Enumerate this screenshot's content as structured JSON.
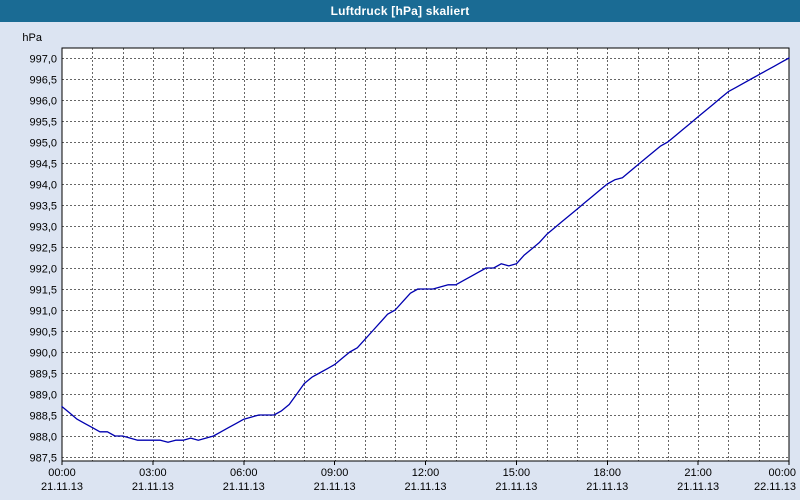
{
  "window": {
    "title": "Luftdruck [hPa] skaliert"
  },
  "colors": {
    "titlebar_bg": "#1a6b94",
    "titlebar_text": "#ffffff",
    "window_bg": "#dce4f2",
    "plot_bg": "#ffffff",
    "grid": "#666666",
    "axis_border": "#000000",
    "line": "#0000b0",
    "text": "#000000"
  },
  "chart_data": {
    "type": "line",
    "title": "Luftdruck [hPa] skaliert",
    "xlabel": "",
    "ylabel": "hPa",
    "ylim": [
      987.5,
      997.0
    ],
    "ytick_step": 0.5,
    "y_tick_labels": [
      "997,0",
      "996,5",
      "996,0",
      "995,5",
      "995,0",
      "994,5",
      "994,0",
      "993,5",
      "993,0",
      "992,5",
      "992,0",
      "991,5",
      "991,0",
      "990,5",
      "990,0",
      "989,5",
      "989,0",
      "988,5",
      "988,0",
      "987,5"
    ],
    "xlim_hours": [
      0,
      24
    ],
    "x_gridline_interval_hours": 1,
    "grid": true,
    "legend_position": "none",
    "x_ticks": [
      {
        "hour": 0,
        "time": "00:00",
        "date": "21.11.13"
      },
      {
        "hour": 3,
        "time": "03:00",
        "date": "21.11.13"
      },
      {
        "hour": 6,
        "time": "06:00",
        "date": "21.11.13"
      },
      {
        "hour": 9,
        "time": "09:00",
        "date": "21.11.13"
      },
      {
        "hour": 12,
        "time": "12:00",
        "date": "21.11.13"
      },
      {
        "hour": 15,
        "time": "15:00",
        "date": "21.11.13"
      },
      {
        "hour": 18,
        "time": "18:00",
        "date": "21.11.13"
      },
      {
        "hour": 21,
        "time": "21:00",
        "date": "21.11.13"
      },
      {
        "hour": 24,
        "time": "00:00",
        "date": "22.11.13"
      }
    ],
    "series": [
      {
        "name": "Luftdruck",
        "color": "#0000b0",
        "points": [
          [
            0.0,
            988.7
          ],
          [
            0.25,
            988.55
          ],
          [
            0.5,
            988.4
          ],
          [
            0.75,
            988.3
          ],
          [
            1.0,
            988.2
          ],
          [
            1.25,
            988.1
          ],
          [
            1.5,
            988.1
          ],
          [
            1.75,
            988.0
          ],
          [
            2.0,
            988.0
          ],
          [
            2.25,
            987.95
          ],
          [
            2.5,
            987.9
          ],
          [
            2.75,
            987.9
          ],
          [
            3.0,
            987.9
          ],
          [
            3.25,
            987.9
          ],
          [
            3.5,
            987.85
          ],
          [
            3.75,
            987.9
          ],
          [
            4.0,
            987.9
          ],
          [
            4.25,
            987.95
          ],
          [
            4.5,
            987.9
          ],
          [
            4.75,
            987.95
          ],
          [
            5.0,
            988.0
          ],
          [
            5.25,
            988.1
          ],
          [
            5.5,
            988.2
          ],
          [
            5.75,
            988.3
          ],
          [
            6.0,
            988.4
          ],
          [
            6.25,
            988.45
          ],
          [
            6.5,
            988.5
          ],
          [
            6.75,
            988.5
          ],
          [
            7.0,
            988.5
          ],
          [
            7.25,
            988.6
          ],
          [
            7.5,
            988.75
          ],
          [
            7.75,
            989.0
          ],
          [
            8.0,
            989.25
          ],
          [
            8.25,
            989.4
          ],
          [
            8.5,
            989.5
          ],
          [
            8.75,
            989.6
          ],
          [
            9.0,
            989.7
          ],
          [
            9.25,
            989.85
          ],
          [
            9.5,
            990.0
          ],
          [
            9.75,
            990.1
          ],
          [
            10.0,
            990.3
          ],
          [
            10.25,
            990.5
          ],
          [
            10.5,
            990.7
          ],
          [
            10.75,
            990.9
          ],
          [
            11.0,
            991.0
          ],
          [
            11.25,
            991.2
          ],
          [
            11.5,
            991.4
          ],
          [
            11.75,
            991.5
          ],
          [
            12.0,
            991.5
          ],
          [
            12.25,
            991.5
          ],
          [
            12.5,
            991.55
          ],
          [
            12.75,
            991.6
          ],
          [
            13.0,
            991.6
          ],
          [
            13.25,
            991.7
          ],
          [
            13.5,
            991.8
          ],
          [
            13.75,
            991.9
          ],
          [
            14.0,
            992.0
          ],
          [
            14.25,
            992.0
          ],
          [
            14.5,
            992.1
          ],
          [
            14.75,
            992.05
          ],
          [
            15.0,
            992.1
          ],
          [
            15.25,
            992.3
          ],
          [
            15.5,
            992.45
          ],
          [
            15.75,
            992.6
          ],
          [
            16.0,
            992.8
          ],
          [
            16.25,
            992.95
          ],
          [
            16.5,
            993.1
          ],
          [
            16.75,
            993.25
          ],
          [
            17.0,
            993.4
          ],
          [
            17.25,
            993.55
          ],
          [
            17.5,
            993.7
          ],
          [
            17.75,
            993.85
          ],
          [
            18.0,
            994.0
          ],
          [
            18.25,
            994.1
          ],
          [
            18.5,
            994.15
          ],
          [
            18.75,
            994.3
          ],
          [
            19.0,
            994.45
          ],
          [
            19.25,
            994.6
          ],
          [
            19.5,
            994.75
          ],
          [
            19.75,
            994.9
          ],
          [
            20.0,
            995.0
          ],
          [
            20.25,
            995.15
          ],
          [
            20.5,
            995.3
          ],
          [
            20.75,
            995.45
          ],
          [
            21.0,
            995.6
          ],
          [
            21.25,
            995.75
          ],
          [
            21.5,
            995.9
          ],
          [
            21.75,
            996.05
          ],
          [
            22.0,
            996.2
          ],
          [
            22.25,
            996.3
          ],
          [
            22.5,
            996.4
          ],
          [
            22.75,
            996.5
          ],
          [
            23.0,
            996.6
          ],
          [
            23.25,
            996.7
          ],
          [
            23.5,
            996.8
          ],
          [
            23.75,
            996.9
          ],
          [
            24.0,
            997.0
          ]
        ]
      }
    ]
  }
}
